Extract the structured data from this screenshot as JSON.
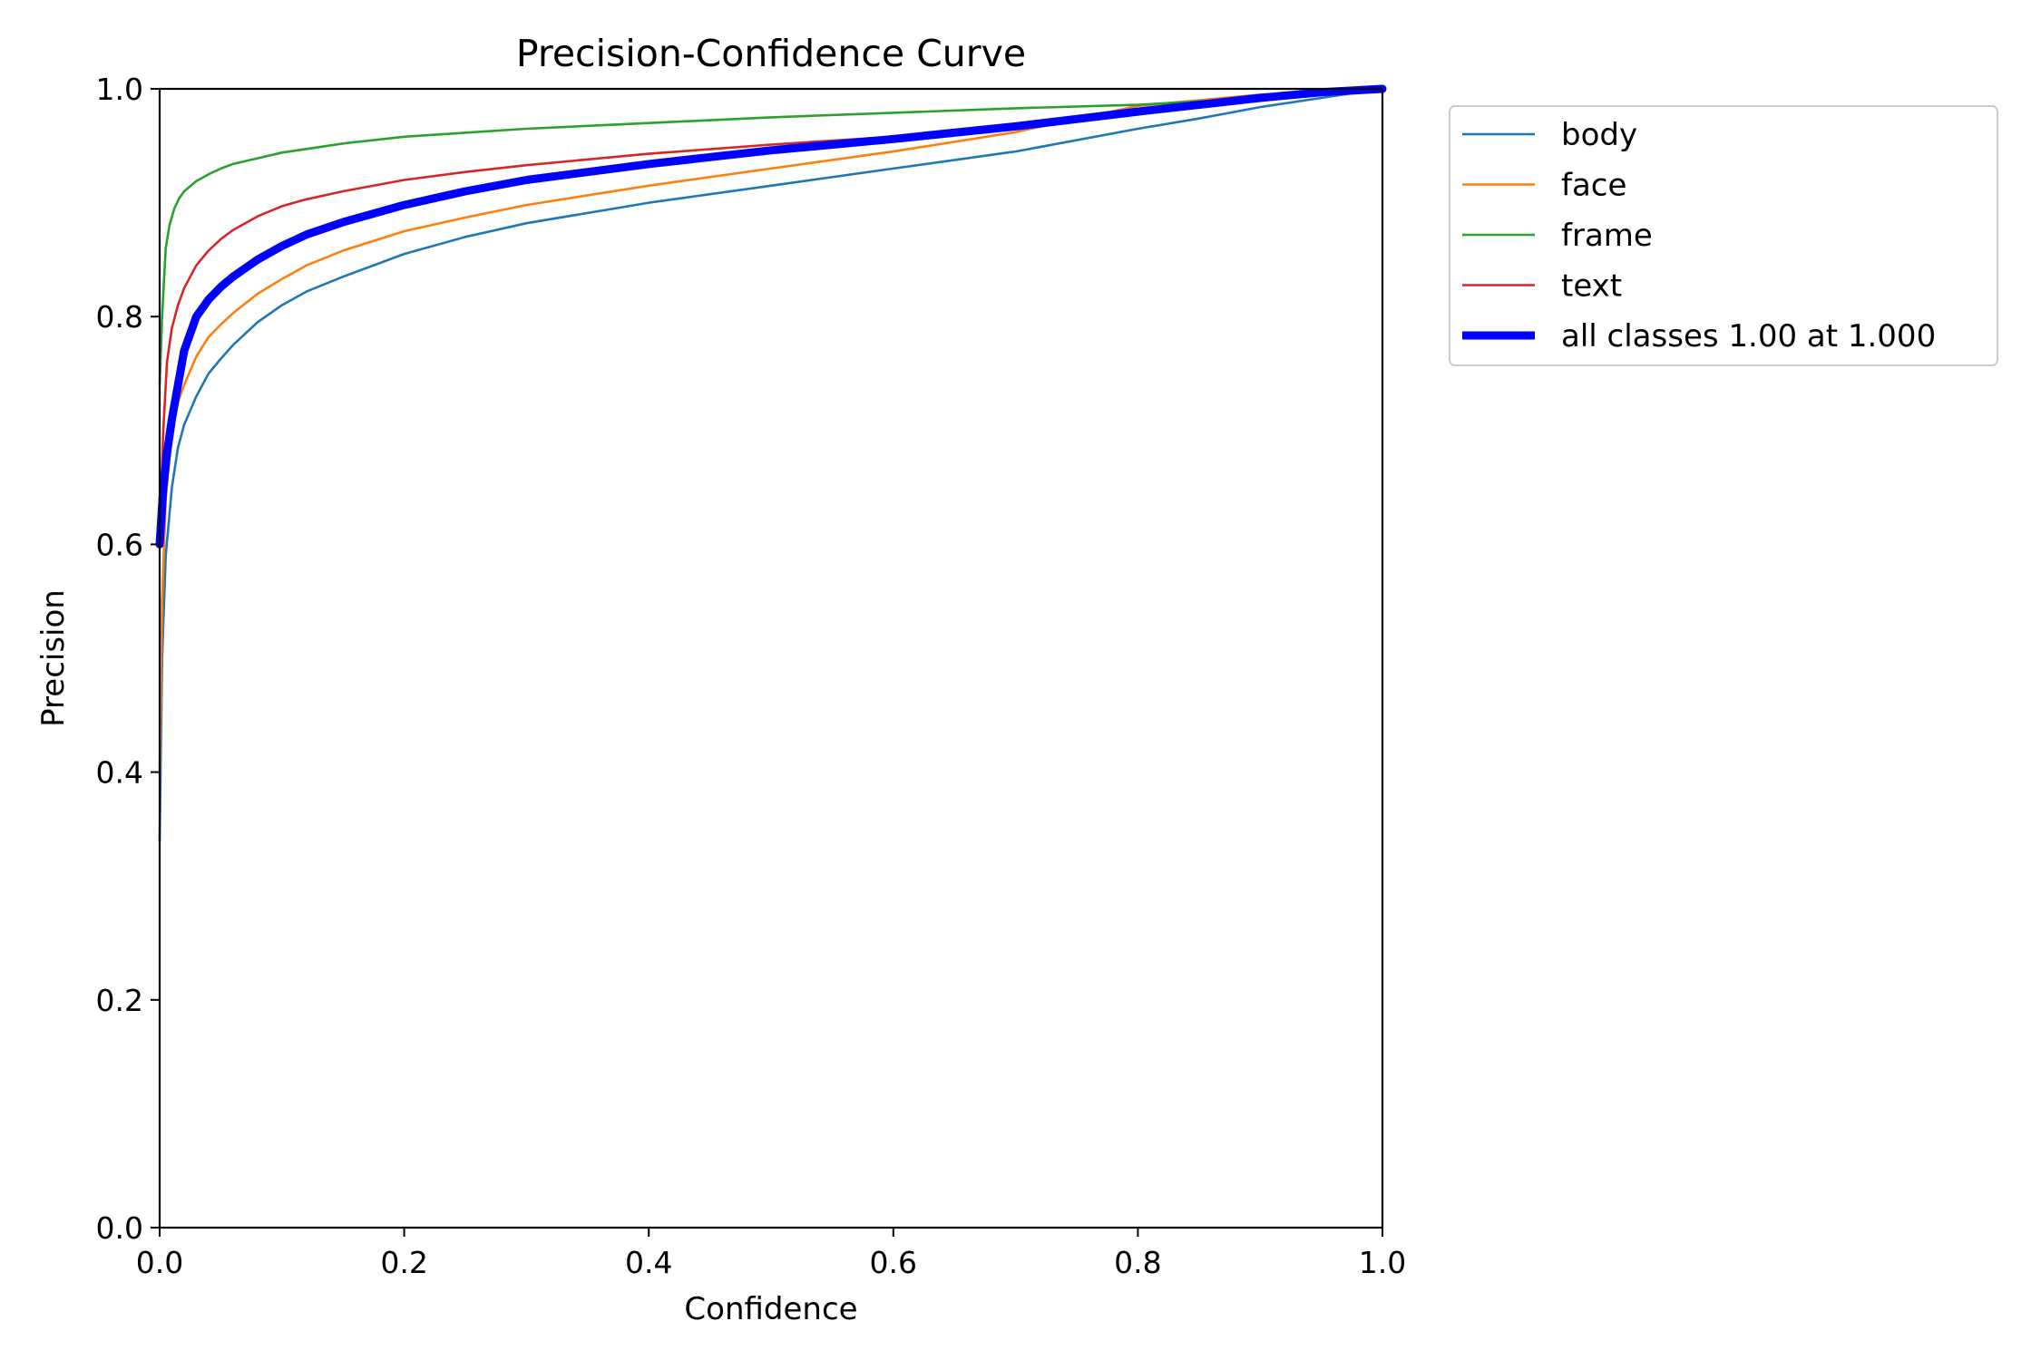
{
  "chart_data": {
    "type": "line",
    "title": "Precision-Confidence Curve",
    "xlabel": "Confidence",
    "ylabel": "Precision",
    "xlim": [
      0,
      1
    ],
    "ylim": [
      0,
      1
    ],
    "x_ticks": [
      "0.0",
      "0.2",
      "0.4",
      "0.6",
      "0.8",
      "1.0"
    ],
    "y_ticks": [
      "0.0",
      "0.2",
      "0.4",
      "0.6",
      "0.8",
      "1.0"
    ],
    "grid": false,
    "legend_position": "outside-top-right",
    "series": [
      {
        "name": "body",
        "color": "#1f77b4",
        "width": "thin",
        "x": [
          0,
          0.002,
          0.005,
          0.01,
          0.015,
          0.02,
          0.03,
          0.04,
          0.05,
          0.06,
          0.08,
          0.1,
          0.12,
          0.15,
          0.2,
          0.25,
          0.3,
          0.4,
          0.5,
          0.6,
          0.7,
          0.8,
          0.85,
          0.9,
          0.95,
          0.98,
          1.0
        ],
        "y": [
          0.34,
          0.5,
          0.59,
          0.65,
          0.685,
          0.705,
          0.73,
          0.75,
          0.763,
          0.775,
          0.795,
          0.81,
          0.822,
          0.835,
          0.855,
          0.87,
          0.882,
          0.9,
          0.915,
          0.93,
          0.945,
          0.965,
          0.974,
          0.984,
          0.992,
          0.997,
          1.0
        ]
      },
      {
        "name": "face",
        "color": "#ff7f0e",
        "width": "thin",
        "x": [
          0,
          0.002,
          0.005,
          0.01,
          0.015,
          0.02,
          0.03,
          0.04,
          0.05,
          0.06,
          0.08,
          0.1,
          0.12,
          0.15,
          0.2,
          0.25,
          0.3,
          0.4,
          0.5,
          0.6,
          0.7,
          0.8,
          0.85,
          0.9,
          0.95,
          0.98,
          1.0
        ],
        "y": [
          0.4,
          0.55,
          0.64,
          0.7,
          0.725,
          0.74,
          0.765,
          0.782,
          0.793,
          0.803,
          0.82,
          0.833,
          0.845,
          0.858,
          0.875,
          0.887,
          0.898,
          0.915,
          0.93,
          0.945,
          0.962,
          0.985,
          0.99,
          0.995,
          0.997,
          0.999,
          1.0
        ]
      },
      {
        "name": "frame",
        "color": "#2ca02c",
        "width": "thin",
        "x": [
          0,
          0.002,
          0.005,
          0.008,
          0.012,
          0.016,
          0.02,
          0.03,
          0.04,
          0.05,
          0.06,
          0.08,
          0.1,
          0.15,
          0.2,
          0.3,
          0.4,
          0.5,
          0.6,
          0.7,
          0.8,
          0.85,
          0.9,
          0.95,
          1.0
        ],
        "y": [
          0.74,
          0.8,
          0.86,
          0.88,
          0.895,
          0.904,
          0.91,
          0.919,
          0.925,
          0.93,
          0.934,
          0.939,
          0.944,
          0.952,
          0.958,
          0.965,
          0.97,
          0.975,
          0.979,
          0.983,
          0.986,
          0.989,
          0.992,
          0.996,
          1.0
        ]
      },
      {
        "name": "text",
        "color": "#d62728",
        "width": "thin",
        "x": [
          0,
          0.003,
          0.006,
          0.01,
          0.015,
          0.02,
          0.03,
          0.04,
          0.05,
          0.06,
          0.08,
          0.1,
          0.12,
          0.15,
          0.2,
          0.25,
          0.3,
          0.4,
          0.5,
          0.6,
          0.7,
          0.8,
          0.9,
          0.95,
          1.0
        ],
        "y": [
          0.6,
          0.7,
          0.76,
          0.79,
          0.81,
          0.825,
          0.845,
          0.858,
          0.868,
          0.876,
          0.888,
          0.897,
          0.903,
          0.91,
          0.92,
          0.927,
          0.933,
          0.943,
          0.951,
          0.958,
          0.967,
          0.979,
          0.99,
          0.995,
          1.0
        ]
      },
      {
        "name": "all classes 1.00 at 1.000",
        "color": "#0000ff",
        "width": "thick",
        "x": [
          0,
          0.003,
          0.006,
          0.01,
          0.015,
          0.02,
          0.03,
          0.04,
          0.05,
          0.06,
          0.08,
          0.1,
          0.12,
          0.15,
          0.2,
          0.25,
          0.3,
          0.4,
          0.5,
          0.6,
          0.7,
          0.8,
          0.9,
          0.95,
          1.0
        ],
        "y": [
          0.6,
          0.65,
          0.68,
          0.71,
          0.74,
          0.77,
          0.8,
          0.815,
          0.826,
          0.835,
          0.85,
          0.862,
          0.872,
          0.883,
          0.898,
          0.91,
          0.92,
          0.934,
          0.946,
          0.956,
          0.967,
          0.98,
          0.992,
          0.997,
          1.0
        ]
      }
    ]
  }
}
